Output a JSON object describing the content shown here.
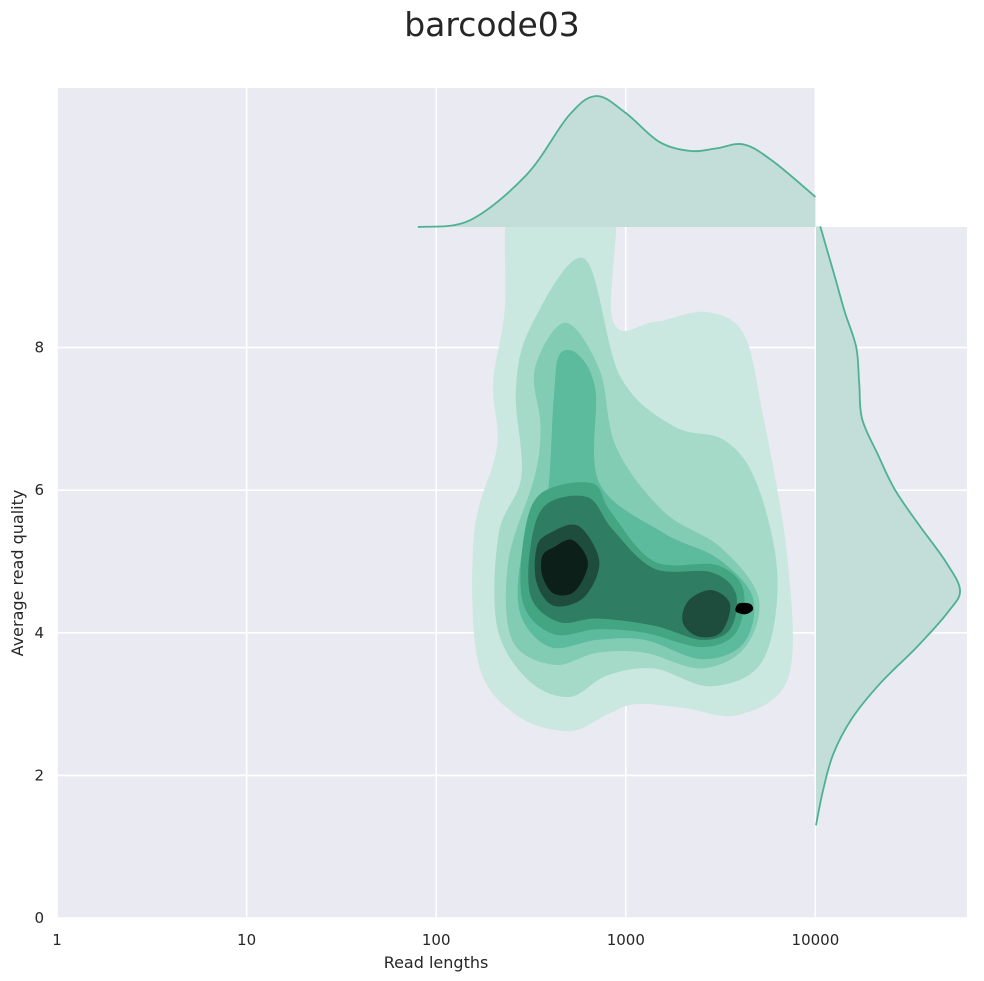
{
  "chart_data": {
    "type": "kde-joint",
    "title": "barcode03",
    "xlabel": "Read lengths",
    "ylabel": "Average read quality",
    "x_scale": "log",
    "xlim": [
      1,
      60000
    ],
    "ylim": [
      0,
      9.7
    ],
    "x_ticks": [
      {
        "value": 1,
        "label": "1"
      },
      {
        "value": 10,
        "label": "10"
      },
      {
        "value": 100,
        "label": "100"
      },
      {
        "value": 1000,
        "label": "1000"
      },
      {
        "value": 10000,
        "label": "10000"
      }
    ],
    "y_ticks": [
      {
        "value": 0,
        "label": "0"
      },
      {
        "value": 2,
        "label": "2"
      },
      {
        "value": 4,
        "label": "4"
      },
      {
        "value": 6,
        "label": "6"
      },
      {
        "value": 8,
        "label": "8"
      }
    ],
    "grid": true,
    "density_modes": [
      {
        "read_length": 600,
        "quality": 5.0,
        "role": "primary"
      },
      {
        "read_length": 4000,
        "quality": 4.35,
        "role": "secondary"
      },
      {
        "read_length": 650,
        "quality": 7.6,
        "role": "minor"
      }
    ],
    "marginal_x": {
      "x": [
        80,
        150,
        300,
        500,
        700,
        1000,
        1500,
        2200,
        3000,
        4200,
        6000,
        10000
      ],
      "density": [
        0.0,
        0.05,
        0.4,
        0.85,
        1.0,
        0.87,
        0.65,
        0.58,
        0.6,
        0.63,
        0.5,
        0.23
      ]
    },
    "marginal_y": {
      "quality": [
        1.3,
        1.8,
        2.3,
        2.8,
        3.3,
        3.8,
        4.3,
        4.6,
        5.0,
        5.5,
        6.0,
        6.5,
        7.0,
        7.5,
        8.0,
        8.5,
        9.0,
        9.7
      ],
      "density": [
        0.0,
        0.05,
        0.12,
        0.25,
        0.45,
        0.7,
        0.92,
        1.0,
        0.9,
        0.72,
        0.55,
        0.43,
        0.32,
        0.3,
        0.28,
        0.2,
        0.13,
        0.03
      ]
    },
    "colors": {
      "background": "#eaeaf2",
      "grid": "#ffffff",
      "marginal_line": "#4db192",
      "marginal_fill": "#c3ddd9",
      "levels": [
        "#cae8df",
        "#a5dac9",
        "#83ccb4",
        "#5cba9d",
        "#44a583",
        "#2f7d62",
        "#1e4d3d",
        "#0c1f19",
        "#000000"
      ]
    }
  }
}
